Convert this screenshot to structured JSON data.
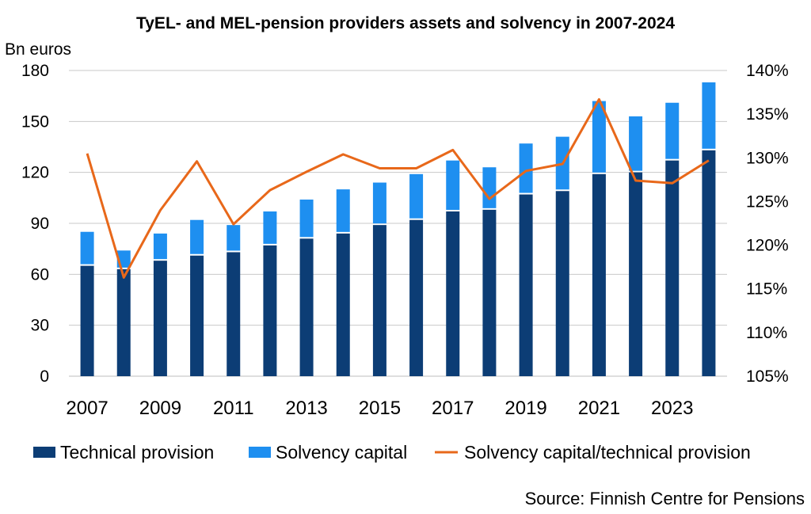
{
  "chart_data": {
    "type": "bar",
    "stacked": true,
    "title": "TyEL- and MEL-pension providers assets and solvency in 2007-2024",
    "ylabel": "Bn euros",
    "y2label": "",
    "xlabel": "",
    "x": [
      2007,
      2008,
      2009,
      2010,
      2011,
      2012,
      2013,
      2014,
      2015,
      2016,
      2017,
      2018,
      2019,
      2020,
      2021,
      2022,
      2023,
      2024
    ],
    "x_tick_labels": [
      "2007",
      "2009",
      "2011",
      "2013",
      "2015",
      "2017",
      "2019",
      "2021",
      "2023"
    ],
    "ylim": [
      0,
      180
    ],
    "y_ticks": [
      "0",
      "30",
      "60",
      "90",
      "120",
      "150",
      "180"
    ],
    "y2lim": [
      1.05,
      1.4
    ],
    "y2_ticks": [
      "105%",
      "110%",
      "115%",
      "120%",
      "125%",
      "130%",
      "135%",
      "140%"
    ],
    "grid": true,
    "legend_position": "bottom",
    "series": [
      {
        "name": "Technical provision",
        "kind": "bar",
        "color": "#0c3d75",
        "values": [
          65,
          63,
          68,
          71,
          73,
          77,
          81,
          84,
          89,
          92,
          97,
          98,
          107,
          109,
          119,
          120,
          127,
          133
        ]
      },
      {
        "name": "Solvency capital",
        "kind": "bar",
        "color": "#1e8ff0",
        "values": [
          20,
          11,
          16,
          21,
          16,
          20,
          23,
          26,
          25,
          27,
          30,
          25,
          30,
          32,
          43,
          33,
          34,
          40
        ]
      },
      {
        "name": "Solvency capital/technical provision",
        "kind": "line",
        "axis": "right",
        "color": "#e8681a",
        "values": [
          1.305,
          1.163,
          1.24,
          1.296,
          1.224,
          1.263,
          1.284,
          1.304,
          1.288,
          1.288,
          1.309,
          1.253,
          1.285,
          1.293,
          1.367,
          1.274,
          1.271,
          1.297
        ]
      }
    ],
    "source": "Source: Finnish Centre for Pensions"
  }
}
